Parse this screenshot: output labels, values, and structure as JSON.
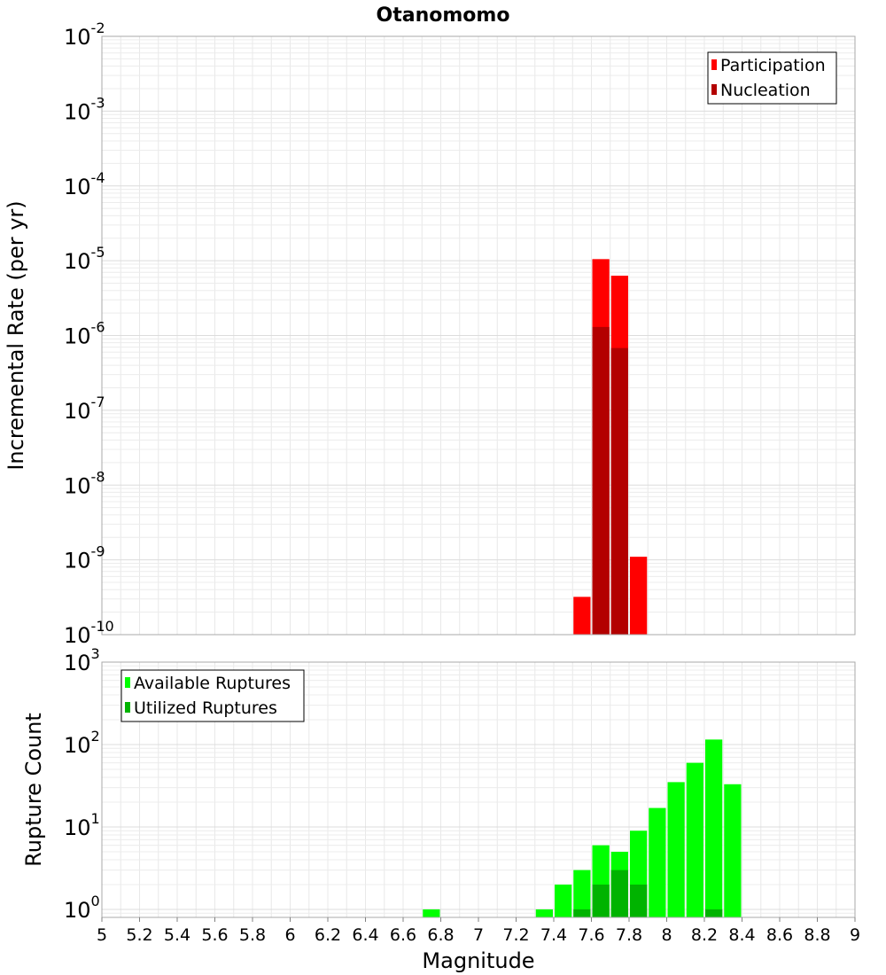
{
  "chart_data": [
    {
      "type": "bar",
      "title": "Otanomomo",
      "xlabel": "",
      "ylabel": "Incremental Rate (per yr)",
      "xlim": [
        5,
        9
      ],
      "ylim": [
        1e-10,
        0.01
      ],
      "yscale": "log",
      "y_tick_exponents": [
        -10,
        -9,
        -8,
        -7,
        -6,
        -5,
        -4,
        -3,
        -2
      ],
      "grid": true,
      "legend_placement": "top-right",
      "bar_width": 0.1,
      "series": [
        {
          "name": "Participation",
          "color": "#ff0000",
          "x": [
            7.55,
            7.65,
            7.75,
            7.85
          ],
          "values": [
            3.2e-10,
            1.05e-05,
            6.3e-06,
            1.1e-09
          ]
        },
        {
          "name": "Nucleation",
          "color": "#b30000",
          "x": [
            7.65,
            7.75
          ],
          "values": [
            1.3e-06,
            6.8e-07
          ]
        }
      ]
    },
    {
      "type": "bar",
      "title": "",
      "xlabel": "Magnitude",
      "ylabel": "Rupture Count",
      "xlim": [
        5,
        9
      ],
      "ylim": [
        0.8,
        1000
      ],
      "yscale": "log",
      "y_tick_exponents": [
        0,
        1,
        2,
        3
      ],
      "x_ticks": [
        "5",
        "5.2",
        "5.4",
        "5.6",
        "5.8",
        "6",
        "6.2",
        "6.4",
        "6.6",
        "6.8",
        "7",
        "7.2",
        "7.4",
        "7.6",
        "7.8",
        "8",
        "8.2",
        "8.4",
        "8.6",
        "8.8",
        "9"
      ],
      "grid": true,
      "legend_placement": "top-left",
      "bar_width": 0.1,
      "series": [
        {
          "name": "Available Ruptures",
          "color": "#00ff00",
          "x": [
            6.75,
            7.35,
            7.45,
            7.55,
            7.65,
            7.75,
            7.85,
            7.95,
            8.05,
            8.15,
            8.25,
            8.35
          ],
          "values": [
            1,
            1,
            2,
            3,
            6,
            5,
            9,
            17,
            35,
            60,
            115,
            33
          ]
        },
        {
          "name": "Utilized Ruptures",
          "color": "#00b300",
          "x": [
            7.55,
            7.65,
            7.75,
            7.85,
            8.25
          ],
          "values": [
            1,
            2,
            3,
            2,
            1
          ]
        }
      ]
    }
  ]
}
